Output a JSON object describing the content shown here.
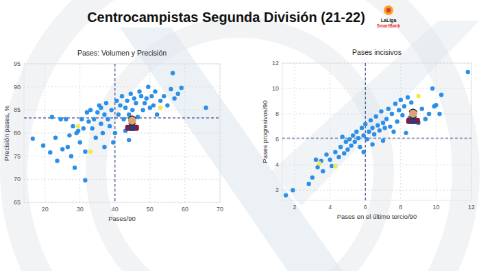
{
  "title": "Centrocampistas Segunda División (21-22)",
  "logo": [
    "LaLiga",
    "SmartBank"
  ],
  "chart_data": [
    {
      "type": "scatter",
      "title": "Pases: Volumen y Precisión",
      "x_label": "Pases/90",
      "y_label": "Precisión pases, %",
      "xlim": [
        14,
        70
      ],
      "ylim": [
        65,
        95
      ],
      "xticks": [
        20,
        30,
        40,
        50,
        60,
        70
      ],
      "yticks": [
        65,
        70,
        75,
        80,
        85,
        90,
        95
      ],
      "grid": true,
      "reference_x": 40,
      "reference_y": 83.3,
      "series": [
        {
          "color": "#2b8fe8",
          "marker": "circle",
          "x": [
            16.5,
            19.5,
            21.5,
            22,
            23,
            23.5,
            24.5,
            25,
            26,
            26.5,
            27,
            27.5,
            28,
            28.5,
            29,
            29.5,
            30,
            30.5,
            31,
            31.5,
            31.5,
            32,
            32.5,
            33,
            33.5,
            34,
            34.5,
            35,
            35.5,
            36,
            36.5,
            37,
            37.5,
            38,
            38.5,
            39,
            39.5,
            40,
            40.5,
            41,
            41.5,
            42,
            42.5,
            43,
            43.5,
            44,
            44.5,
            45,
            45.5,
            46,
            46.5,
            47,
            47.5,
            48,
            48.5,
            49,
            49.5,
            50,
            50.5,
            51,
            51.5,
            52,
            53,
            54,
            55,
            56,
            56.5,
            57,
            58,
            59,
            66,
            44,
            43,
            37,
            36
          ],
          "values": [
            78.8,
            77.3,
            75.8,
            83.5,
            79,
            74,
            83,
            76.5,
            83,
            77,
            79.5,
            75,
            81.5,
            72.5,
            80,
            80.5,
            78,
            83,
            81,
            69.8,
            76,
            84.5,
            82.5,
            85,
            81,
            83,
            79,
            84.5,
            86,
            82,
            80,
            84,
            86.5,
            83,
            81.5,
            85,
            78,
            80,
            87,
            84,
            86,
            88,
            83,
            85.5,
            87,
            84,
            88.5,
            85,
            87.5,
            86.5,
            83.5,
            89,
            88,
            85,
            86.5,
            87.5,
            90,
            85.5,
            88,
            86,
            89,
            84,
            87,
            88,
            86,
            89.5,
            93,
            87.5,
            88.5,
            89.8,
            85.5,
            78.5,
            80.5,
            77,
            85.5
          ]
        },
        {
          "color": "#f2e84a",
          "marker": "circle",
          "x": [
            29.5,
            33,
            53
          ],
          "values": [
            81.5,
            76,
            85.5
          ]
        },
        {
          "color": "#7a1f3d",
          "marker": "avatar",
          "x": [
            44.9
          ],
          "values": [
            82.1
          ]
        }
      ]
    },
    {
      "type": "scatter",
      "title": "Pases incisivos",
      "x_label": "Pases en el último tercio/90",
      "y_label": "Pases progresivos/90",
      "xlim": [
        1.3,
        12
      ],
      "ylim": [
        1.2,
        12
      ],
      "xticks": [
        2,
        4,
        6,
        8,
        10,
        12
      ],
      "yticks": [
        2,
        4,
        6,
        8,
        10,
        12
      ],
      "grid": true,
      "reference_x": 6,
      "reference_y": 6.1,
      "series": [
        {
          "color": "#2b8fe8",
          "marker": "circle",
          "x": [
            1.5,
            1.9,
            2.8,
            3.0,
            3.3,
            3.5,
            3.6,
            3.8,
            4.0,
            4.1,
            4.3,
            4.5,
            4.6,
            4.8,
            4.9,
            5.0,
            5.1,
            5.2,
            5.3,
            5.4,
            5.5,
            5.6,
            5.7,
            5.8,
            5.9,
            6.0,
            6.1,
            6.2,
            6.3,
            6.4,
            6.5,
            6.6,
            6.7,
            6.8,
            6.9,
            7.0,
            7.1,
            7.2,
            7.3,
            7.4,
            7.5,
            7.6,
            7.7,
            7.8,
            7.9,
            8.0,
            8.1,
            8.2,
            8.3,
            8.4,
            8.5,
            8.6,
            8.8,
            9.0,
            9.2,
            9.4,
            9.6,
            9.8,
            9.9,
            10.0,
            10.2,
            10.3,
            11.8,
            4.7,
            5.9,
            6.4,
            3.2,
            7.0
          ],
          "values": [
            1.6,
            2.0,
            2.5,
            3.0,
            3.8,
            4.3,
            3.5,
            4.8,
            4.4,
            3.9,
            5.0,
            4.6,
            5.4,
            4.9,
            5.8,
            5.2,
            6.0,
            5.5,
            6.3,
            5.8,
            6.6,
            6.1,
            5.4,
            6.9,
            6.3,
            7.2,
            6.0,
            6.6,
            7.5,
            6.9,
            6.4,
            7.8,
            7.1,
            6.7,
            8.2,
            7.3,
            6.9,
            7.6,
            8.4,
            7.0,
            8.0,
            6.6,
            8.8,
            7.4,
            8.3,
            9.1,
            7.9,
            8.6,
            6.5,
            9.3,
            7.7,
            8.9,
            8.1,
            7.3,
            8.4,
            7.6,
            8.0,
            10.0,
            8.6,
            8.7,
            8.0,
            9.5,
            11.3,
            6.2,
            5.0,
            5.6,
            4.4,
            5.9
          ]
        },
        {
          "color": "#f2e84a",
          "marker": "circle",
          "x": [
            3.4,
            4.3,
            9.0
          ],
          "values": [
            4.1,
            3.9,
            9.4
          ]
        },
        {
          "color": "#7a1f3d",
          "marker": "avatar",
          "x": [
            8.7
          ],
          "values": [
            7.8
          ]
        }
      ]
    }
  ]
}
